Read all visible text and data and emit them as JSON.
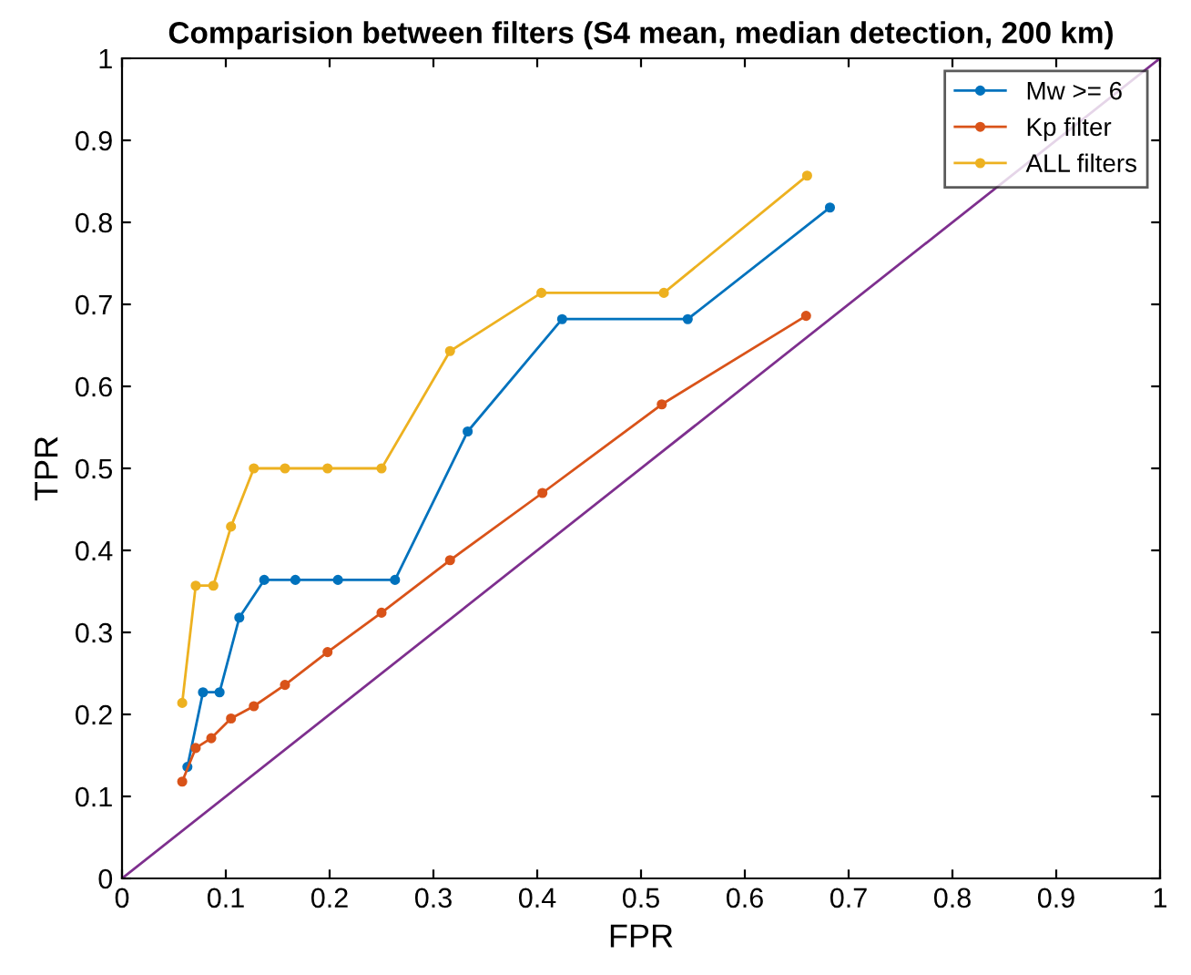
{
  "chart_data": {
    "type": "line",
    "title": "Comparision between filters (S4 mean, median detection, 200 km)",
    "xlabel": "FPR",
    "ylabel": "TPR",
    "xlim": [
      0,
      1
    ],
    "ylim": [
      0,
      1
    ],
    "xticks": [
      0,
      0.1,
      0.2,
      0.3,
      0.4,
      0.5,
      0.6,
      0.7,
      0.8,
      0.9,
      1
    ],
    "yticks": [
      0,
      0.1,
      0.2,
      0.3,
      0.4,
      0.5,
      0.6,
      0.7,
      0.8,
      0.9,
      1
    ],
    "grid": false,
    "legend": "top right",
    "marker": "circle",
    "line_style": "solid",
    "series": [
      {
        "name": "Mw >= 6",
        "color": "#0072bd",
        "x": [
          0.063,
          0.078,
          0.094,
          0.113,
          0.137,
          0.167,
          0.208,
          0.263,
          0.333,
          0.424,
          0.545,
          0.682
        ],
        "values": [
          0.136,
          0.227,
          0.227,
          0.318,
          0.364,
          0.364,
          0.364,
          0.364,
          0.545,
          0.682,
          0.682,
          0.818
        ]
      },
      {
        "name": "Kp filter",
        "color": "#d95319",
        "x": [
          0.058,
          0.071,
          0.086,
          0.105,
          0.127,
          0.157,
          0.198,
          0.25,
          0.316,
          0.405,
          0.52,
          0.659
        ],
        "values": [
          0.118,
          0.159,
          0.171,
          0.195,
          0.21,
          0.236,
          0.276,
          0.324,
          0.388,
          0.47,
          0.578,
          0.686
        ]
      },
      {
        "name": "ALL filters",
        "color": "#edb120",
        "x": [
          0.058,
          0.071,
          0.088,
          0.105,
          0.127,
          0.157,
          0.198,
          0.25,
          0.316,
          0.404,
          0.522,
          0.66
        ],
        "values": [
          0.214,
          0.357,
          0.357,
          0.429,
          0.5,
          0.5,
          0.5,
          0.5,
          0.643,
          0.714,
          0.714,
          0.857
        ]
      },
      {
        "color": "#7e2f8e",
        "x": [
          0,
          1
        ],
        "values": [
          0,
          1
        ],
        "marker": "none"
      }
    ]
  }
}
